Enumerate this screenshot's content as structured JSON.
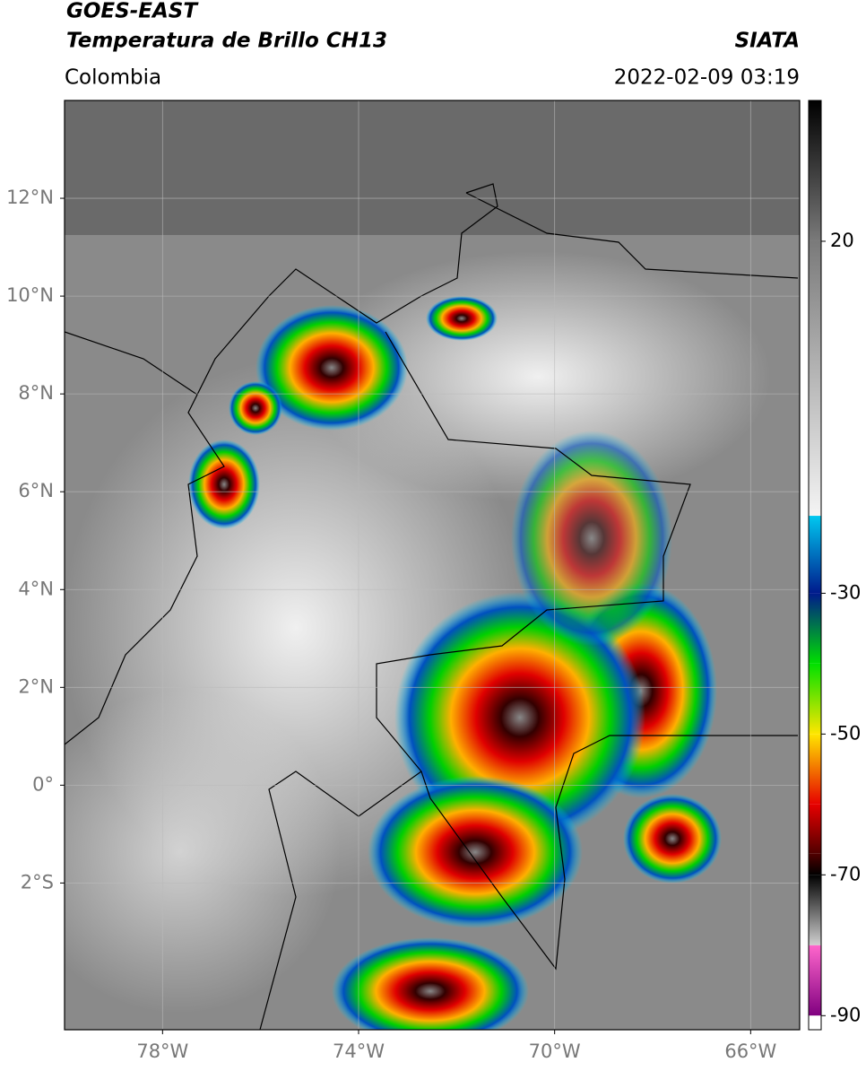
{
  "header": {
    "title": "GOES-EAST",
    "subtitle": "Temperatura de Brillo CH13",
    "region": "Colombia",
    "source": "SIATA",
    "timestamp": "2022-02-09 03:19"
  },
  "map": {
    "xlim": [
      -80,
      -65
    ],
    "ylim": [
      -5,
      14
    ],
    "xticks": [
      {
        "value": -78,
        "label": "78°W"
      },
      {
        "value": -74,
        "label": "74°W"
      },
      {
        "value": -70,
        "label": "70°W"
      },
      {
        "value": -66,
        "label": "66°W"
      }
    ],
    "yticks": [
      {
        "value": 12,
        "label": "12°N"
      },
      {
        "value": 10,
        "label": "10°N"
      },
      {
        "value": 8,
        "label": "8°N"
      },
      {
        "value": 6,
        "label": "6°N"
      },
      {
        "value": 4,
        "label": "4°N"
      },
      {
        "value": 2,
        "label": "2°N"
      },
      {
        "value": 0,
        "label": "0°"
      },
      {
        "value": -2,
        "label": "2°S"
      }
    ],
    "grid": true
  },
  "colorbar": {
    "lim": [
      -92,
      40
    ],
    "ticks": [
      20,
      -30,
      -50,
      -70,
      -90
    ],
    "stops": [
      {
        "value": 40,
        "color": "#000000"
      },
      {
        "value": 20,
        "color": "#7a7a7a"
      },
      {
        "value": -19,
        "color": "#f4f4f4"
      },
      {
        "value": -19,
        "color": "#00c8f0"
      },
      {
        "value": -30,
        "color": "#001a8c"
      },
      {
        "value": -40,
        "color": "#00e000"
      },
      {
        "value": -50,
        "color": "#ffe600"
      },
      {
        "value": -60,
        "color": "#e60000"
      },
      {
        "value": -67,
        "color": "#500000"
      },
      {
        "value": -70,
        "color": "#000000"
      },
      {
        "value": -80,
        "color": "#d0d0d0"
      },
      {
        "value": -80,
        "color": "#ff66cc"
      },
      {
        "value": -90,
        "color": "#800080"
      },
      {
        "value": -90,
        "color": "#ffffff"
      },
      {
        "value": -92,
        "color": "#ffffff"
      }
    ]
  }
}
